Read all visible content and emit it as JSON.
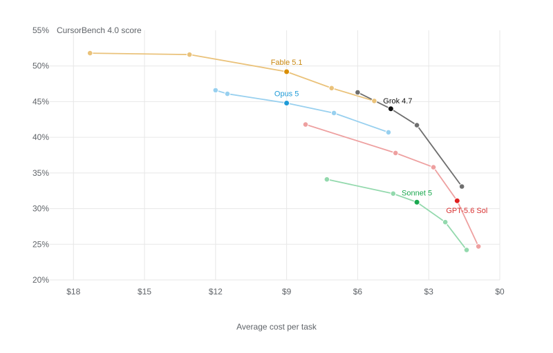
{
  "chart_data": {
    "type": "line",
    "ylabel": "CursorBench 4.0 score",
    "xlabel": "Average cost per task",
    "xlim": [
      19,
      0
    ],
    "ylim": [
      20,
      55
    ],
    "x_ticks": [
      {
        "value": 18,
        "label": "$18"
      },
      {
        "value": 15,
        "label": "$15"
      },
      {
        "value": 12,
        "label": "$12"
      },
      {
        "value": 9,
        "label": "$9"
      },
      {
        "value": 6,
        "label": "$6"
      },
      {
        "value": 3,
        "label": "$3"
      },
      {
        "value": 0,
        "label": "$0"
      }
    ],
    "y_ticks": [
      {
        "value": 55,
        "label": "55%"
      },
      {
        "value": 50,
        "label": "50%"
      },
      {
        "value": 45,
        "label": "45%"
      },
      {
        "value": 40,
        "label": "40%"
      },
      {
        "value": 35,
        "label": "35%"
      },
      {
        "value": 30,
        "label": "30%"
      },
      {
        "value": 25,
        "label": "25%"
      },
      {
        "value": 20,
        "label": "20%"
      }
    ],
    "grid": true,
    "series": [
      {
        "name": "Fable 5.1",
        "color": "#d98e04",
        "light_color": "#eac27a",
        "label_color": "#c8860e",
        "points": [
          {
            "x": 17.3,
            "y": 51.8,
            "highlight": false
          },
          {
            "x": 13.1,
            "y": 51.6,
            "highlight": false
          },
          {
            "x": 9.0,
            "y": 49.2,
            "highlight": true
          },
          {
            "x": 7.1,
            "y": 46.9,
            "highlight": false
          },
          {
            "x": 5.3,
            "y": 45.1,
            "highlight": false
          }
        ]
      },
      {
        "name": "Opus 5",
        "color": "#1f9bd7",
        "light_color": "#98d0ef",
        "label_color": "#1f9bd7",
        "points": [
          {
            "x": 12.0,
            "y": 46.6,
            "highlight": false
          },
          {
            "x": 11.5,
            "y": 46.1,
            "highlight": false
          },
          {
            "x": 9.0,
            "y": 44.8,
            "highlight": true
          },
          {
            "x": 7.0,
            "y": 43.4,
            "highlight": false
          },
          {
            "x": 4.7,
            "y": 40.7,
            "highlight": false
          }
        ]
      },
      {
        "name": "Grok 4.7",
        "color": "#111111",
        "light_color": "#6e6e6e",
        "label_color": "#111111",
        "points": [
          {
            "x": 6.0,
            "y": 46.3,
            "highlight": false
          },
          {
            "x": 4.6,
            "y": 44.0,
            "highlight": true
          },
          {
            "x": 3.5,
            "y": 41.7,
            "highlight": false
          },
          {
            "x": 1.6,
            "y": 33.1,
            "highlight": false
          }
        ]
      },
      {
        "name": "GPT-5.6 Sol",
        "color": "#e02020",
        "light_color": "#eea0a0",
        "label_color": "#d93030",
        "points": [
          {
            "x": 8.2,
            "y": 41.8,
            "highlight": false
          },
          {
            "x": 4.4,
            "y": 37.8,
            "highlight": false
          },
          {
            "x": 2.8,
            "y": 35.8,
            "highlight": false
          },
          {
            "x": 1.8,
            "y": 31.1,
            "highlight": true
          },
          {
            "x": 0.9,
            "y": 24.7,
            "highlight": false
          }
        ]
      },
      {
        "name": "Sonnet 5",
        "color": "#1aa84e",
        "light_color": "#93d9ad",
        "label_color": "#1aa84e",
        "points": [
          {
            "x": 7.3,
            "y": 34.1,
            "highlight": false
          },
          {
            "x": 4.5,
            "y": 32.1,
            "highlight": false
          },
          {
            "x": 3.5,
            "y": 30.9,
            "highlight": true
          },
          {
            "x": 2.3,
            "y": 28.1,
            "highlight": false
          },
          {
            "x": 1.4,
            "y": 24.2,
            "highlight": false
          }
        ]
      }
    ]
  }
}
